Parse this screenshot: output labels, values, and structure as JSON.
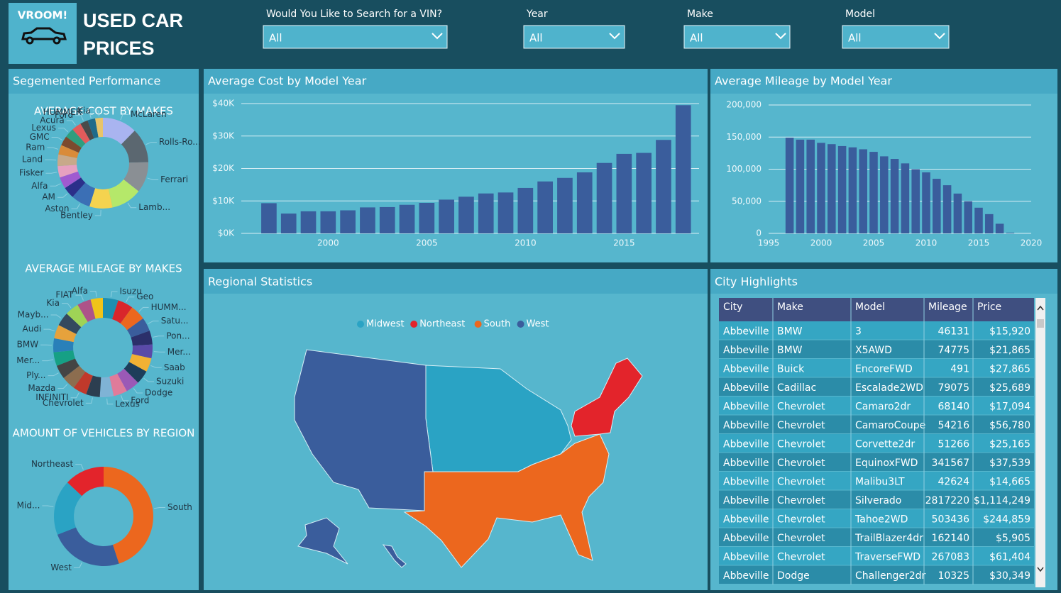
{
  "header": {
    "logo": "VROOM!",
    "title_line1": "USED CAR",
    "title_line2": "PRICES"
  },
  "filters": [
    {
      "label": "Would You Like to Search for a VIN?",
      "value": "All"
    },
    {
      "label": "Year",
      "value": "All"
    },
    {
      "label": "Make",
      "value": "All"
    },
    {
      "label": "Model",
      "value": "All"
    }
  ],
  "panels": {
    "segmented": "Segemented Performance",
    "regional": "Regional Statistics",
    "city": "City Highlights"
  },
  "chart_data": [
    {
      "type": "bar",
      "title": "Average Cost by Model Year",
      "color": "#3a5d9c",
      "x": [
        1997,
        1998,
        1999,
        2000,
        2001,
        2002,
        2003,
        2004,
        2005,
        2006,
        2007,
        2008,
        2009,
        2010,
        2011,
        2012,
        2013,
        2014,
        2015,
        2016,
        2017,
        2018
      ],
      "values": [
        9300,
        6100,
        6800,
        6800,
        7100,
        8000,
        8100,
        8800,
        9400,
        10400,
        11300,
        12300,
        12600,
        14000,
        16000,
        17100,
        18800,
        21700,
        24500,
        24800,
        28800,
        39500
      ],
      "xlim": [
        1995.6,
        2018.8
      ],
      "xticks": [
        2000,
        2005,
        2010,
        2015
      ],
      "ylim": [
        0,
        40000
      ],
      "yticks": [
        {
          "value": 0,
          "label": "$0K"
        },
        {
          "value": 10000,
          "label": "$10K"
        },
        {
          "value": 20000,
          "label": "$20K"
        },
        {
          "value": 30000,
          "label": "$30K"
        },
        {
          "value": 40000,
          "label": "$40K"
        }
      ],
      "grid": true
    },
    {
      "type": "bar",
      "title": "Average Mileage by Model Year",
      "color": "#3a5d9c",
      "x": [
        1997,
        1998,
        1999,
        2000,
        2001,
        2002,
        2003,
        2004,
        2005,
        2006,
        2007,
        2008,
        2009,
        2010,
        2011,
        2012,
        2013,
        2014,
        2015,
        2016,
        2017,
        2018
      ],
      "values": [
        149000,
        146000,
        146000,
        141000,
        139000,
        136000,
        134000,
        131000,
        127000,
        120000,
        116000,
        109000,
        100000,
        95000,
        85000,
        75000,
        62000,
        50000,
        40000,
        30000,
        15000,
        1000
      ],
      "xlim": [
        1995,
        2020
      ],
      "xticks": [
        1995,
        2000,
        2005,
        2010,
        2015,
        2020
      ],
      "ylim": [
        0,
        200000
      ],
      "yticks": [
        0,
        {
          "value": 50000,
          "label": "50,000"
        },
        {
          "value": 100000,
          "label": "100,000"
        },
        {
          "value": 150000,
          "label": "150,000"
        },
        {
          "value": 200000,
          "label": "200,000"
        }
      ],
      "grid": true
    },
    {
      "type": "donut",
      "title": "AVERAGE COST BY MAKES",
      "categories": [
        "McLaren",
        "Rolls-Ro...",
        "Ferrari",
        "Lamb...",
        "Bentley",
        "Aston",
        "AM",
        "Alfa",
        "Fisker",
        "Land",
        "Ram",
        "GMC",
        "Lexus",
        "Acura",
        "Ford",
        "HUMMER",
        "Kia"
      ],
      "values": [
        9,
        9,
        8,
        8,
        6,
        5,
        3,
        3,
        3,
        3,
        2.5,
        2.5,
        2.5,
        2.5,
        2,
        2,
        2
      ],
      "colors": [
        "#a9b4f0",
        "#5b6770",
        "#8a8f94",
        "#b5e86a",
        "#f5d34f",
        "#3b6fb5",
        "#2b2f8a",
        "#a05ad0",
        "#e7a0c0",
        "#c8a98a",
        "#d98b3a",
        "#7c4a2e",
        "#2e9e7e",
        "#e25b5b",
        "#4a4a4a",
        "#1f6b8a",
        "#e8c46a"
      ]
    },
    {
      "type": "donut",
      "title": "AVERAGE MILEAGE BY MAKES",
      "categories": [
        "Isuzu",
        "Geo",
        "HUMM...",
        "Satu...",
        "Pon...",
        "Mer...",
        "Saab",
        "Suzuki",
        "Dodge",
        "Ford",
        "Lexus",
        "Chevrolet",
        "INFINITI",
        "Mazda",
        "Ply...",
        "Mer...",
        "BMW",
        "Audi",
        "Mayb...",
        "Kia",
        "FIAT",
        "Alfa"
      ],
      "values": [
        5,
        5,
        5,
        4.5,
        4.5,
        4.5,
        4.5,
        4.5,
        4.5,
        4.5,
        4.5,
        4.5,
        4.5,
        4.5,
        4.5,
        4.5,
        4.5,
        4.5,
        4.5,
        4.5,
        4.5,
        4
      ],
      "colors": [
        "#1e8fb0",
        "#d9262b",
        "#ec671e",
        "#3a5d9c",
        "#2b2f6a",
        "#5a4aa8",
        "#f2b134",
        "#1d3d5a",
        "#9b59b6",
        "#e07b9a",
        "#7fb3d5",
        "#2c3e50",
        "#c0392b",
        "#8c6d4f",
        "#444444",
        "#16a085",
        "#2980b9",
        "#e6a23c",
        "#34495e",
        "#9fd356",
        "#ad5389",
        "#f0c419"
      ]
    },
    {
      "type": "donut",
      "title": "AMOUNT OF VEHICLES BY REGION",
      "categories": [
        "South",
        "West",
        "Mid...",
        "Northeast"
      ],
      "values": [
        45,
        24,
        18,
        13
      ],
      "colors": [
        "#ec671e",
        "#3a5d9c",
        "#2aa3c4",
        "#e3242b"
      ]
    },
    {
      "type": "map",
      "series": [
        {
          "name": "Midwest",
          "color": "#2aa3c4"
        },
        {
          "name": "Northeast",
          "color": "#e3242b"
        },
        {
          "name": "South",
          "color": "#ec671e"
        },
        {
          "name": "West",
          "color": "#3a5d9c"
        }
      ]
    }
  ],
  "table": {
    "columns": [
      "City",
      "Make",
      "Model",
      "Mileage",
      "Price"
    ],
    "rows": [
      [
        "Abbeville",
        "BMW",
        "3",
        46131,
        "$15,920"
      ],
      [
        "Abbeville",
        "BMW",
        "X5AWD",
        74775,
        "$21,865"
      ],
      [
        "Abbeville",
        "Buick",
        "EncoreFWD",
        491,
        "$27,865"
      ],
      [
        "Abbeville",
        "Cadillac",
        "Escalade2WD",
        79075,
        "$25,689"
      ],
      [
        "Abbeville",
        "Chevrolet",
        "Camaro2dr",
        68140,
        "$17,094"
      ],
      [
        "Abbeville",
        "Chevrolet",
        "CamaroCoupe",
        54216,
        "$56,780"
      ],
      [
        "Abbeville",
        "Chevrolet",
        "Corvette2dr",
        51266,
        "$25,165"
      ],
      [
        "Abbeville",
        "Chevrolet",
        "EquinoxFWD",
        341567,
        "$37,539"
      ],
      [
        "Abbeville",
        "Chevrolet",
        "Malibu3LT",
        42624,
        "$14,665"
      ],
      [
        "Abbeville",
        "Chevrolet",
        "Silverado",
        2817220,
        "$1,114,249"
      ],
      [
        "Abbeville",
        "Chevrolet",
        "Tahoe2WD",
        503436,
        "$244,859"
      ],
      [
        "Abbeville",
        "Chevrolet",
        "TrailBlazer4dr",
        162140,
        "$5,905"
      ],
      [
        "Abbeville",
        "Chevrolet",
        "TraverseFWD",
        267083,
        "$61,404"
      ],
      [
        "Abbeville",
        "Dodge",
        "Challenger2dr",
        10325,
        "$30,349"
      ]
    ]
  }
}
